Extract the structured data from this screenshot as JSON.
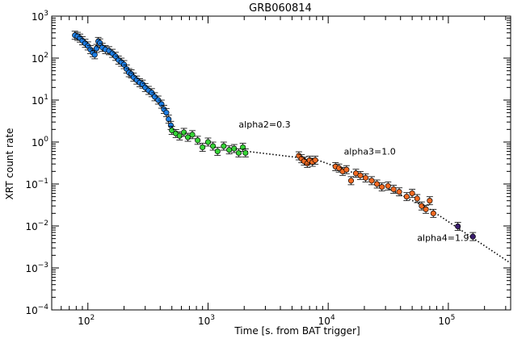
{
  "chart_data": {
    "type": "scatter",
    "title": "GRB060814",
    "xlabel": "Time [s. from BAT trigger]",
    "ylabel": "XRT count rate",
    "x_scale": "log",
    "y_scale": "log",
    "xlim": [
      50,
      330000
    ],
    "ylim": [
      0.0001,
      1000
    ],
    "x_ticks": [
      {
        "base": "10",
        "exp": "2",
        "value": 100
      },
      {
        "base": "10",
        "exp": "3",
        "value": 1000
      },
      {
        "base": "10",
        "exp": "4",
        "value": 10000
      },
      {
        "base": "10",
        "exp": "5",
        "value": 100000
      }
    ],
    "y_ticks": [
      {
        "base": "10",
        "exp": "−4",
        "value": 0.0001
      },
      {
        "base": "10",
        "exp": "−3",
        "value": 0.001
      },
      {
        "base": "10",
        "exp": "−2",
        "value": 0.01
      },
      {
        "base": "10",
        "exp": "−1",
        "value": 0.1
      },
      {
        "base": "10",
        "exp": "0",
        "value": 1
      },
      {
        "base": "10",
        "exp": "1",
        "value": 10
      },
      {
        "base": "10",
        "exp": "2",
        "value": 100
      },
      {
        "base": "10",
        "exp": "3",
        "value": 1000
      }
    ],
    "grid": false,
    "annotations": [
      {
        "text": "alpha2=0.3",
        "x": 1800,
        "y": 2.2
      },
      {
        "text": "alpha3=1.0",
        "x": 13500,
        "y": 0.5
      },
      {
        "text": "alpha4=1.9",
        "x": 55000,
        "y": 0.0044
      }
    ],
    "model_line": {
      "style": "dotted",
      "points": [
        [
          2100,
          0.6
        ],
        [
          8000,
          0.38
        ],
        [
          20000,
          0.15
        ],
        [
          70000,
          0.025
        ],
        [
          330000,
          0.0013
        ]
      ]
    },
    "series": [
      {
        "color": "#1e7fe6",
        "points": [
          [
            78,
            350
          ],
          [
            82,
            330
          ],
          [
            86,
            300
          ],
          [
            90,
            260
          ],
          [
            95,
            225
          ],
          [
            100,
            195
          ],
          [
            105,
            160
          ],
          [
            110,
            135
          ],
          [
            114,
            120
          ],
          [
            118,
            170
          ],
          [
            122,
            250
          ],
          [
            126,
            230
          ],
          [
            132,
            180
          ],
          [
            140,
            160
          ],
          [
            150,
            150
          ],
          [
            160,
            130
          ],
          [
            170,
            110
          ],
          [
            180,
            90
          ],
          [
            190,
            80
          ],
          [
            200,
            70
          ],
          [
            210,
            55
          ],
          [
            220,
            45
          ],
          [
            230,
            42
          ],
          [
            240,
            35
          ],
          [
            255,
            30
          ],
          [
            270,
            26
          ],
          [
            285,
            24
          ],
          [
            300,
            20
          ],
          [
            320,
            17
          ],
          [
            340,
            15
          ],
          [
            360,
            12
          ],
          [
            385,
            10
          ],
          [
            410,
            8
          ],
          [
            430,
            6
          ],
          [
            450,
            5
          ],
          [
            470,
            3.5
          ],
          [
            490,
            2.5
          ]
        ]
      },
      {
        "color": "#36d436",
        "points": [
          [
            500,
            1.9
          ],
          [
            540,
            1.6
          ],
          [
            580,
            1.4
          ],
          [
            630,
            1.7
          ],
          [
            680,
            1.3
          ],
          [
            740,
            1.5
          ],
          [
            820,
            1.1
          ],
          [
            900,
            0.75
          ],
          [
            1000,
            1.0
          ],
          [
            1100,
            0.8
          ],
          [
            1200,
            0.6
          ],
          [
            1350,
            0.8
          ],
          [
            1500,
            0.65
          ],
          [
            1650,
            0.7
          ],
          [
            1800,
            0.55
          ],
          [
            1950,
            0.75
          ],
          [
            2050,
            0.55
          ]
        ]
      },
      {
        "color": "#f26a22",
        "points": [
          [
            5700,
            0.47
          ],
          [
            6000,
            0.4
          ],
          [
            6300,
            0.35
          ],
          [
            6700,
            0.31
          ],
          [
            7000,
            0.37
          ],
          [
            7400,
            0.33
          ],
          [
            7800,
            0.37
          ],
          [
            11500,
            0.26
          ],
          [
            12300,
            0.24
          ],
          [
            13200,
            0.2
          ],
          [
            14200,
            0.22
          ],
          [
            15500,
            0.12
          ],
          [
            17000,
            0.18
          ],
          [
            18500,
            0.16
          ],
          [
            20500,
            0.14
          ],
          [
            23000,
            0.12
          ],
          [
            25500,
            0.1
          ],
          [
            28000,
            0.085
          ],
          [
            31500,
            0.09
          ],
          [
            35000,
            0.075
          ],
          [
            39000,
            0.065
          ],
          [
            45000,
            0.05
          ],
          [
            50000,
            0.06
          ],
          [
            55000,
            0.045
          ],
          [
            60000,
            0.03
          ],
          [
            65000,
            0.025
          ],
          [
            70000,
            0.04
          ],
          [
            75000,
            0.02
          ]
        ]
      },
      {
        "color": "#3a1d6e",
        "points": [
          [
            120000,
            0.0098
          ],
          [
            160000,
            0.0056
          ]
        ]
      }
    ]
  }
}
